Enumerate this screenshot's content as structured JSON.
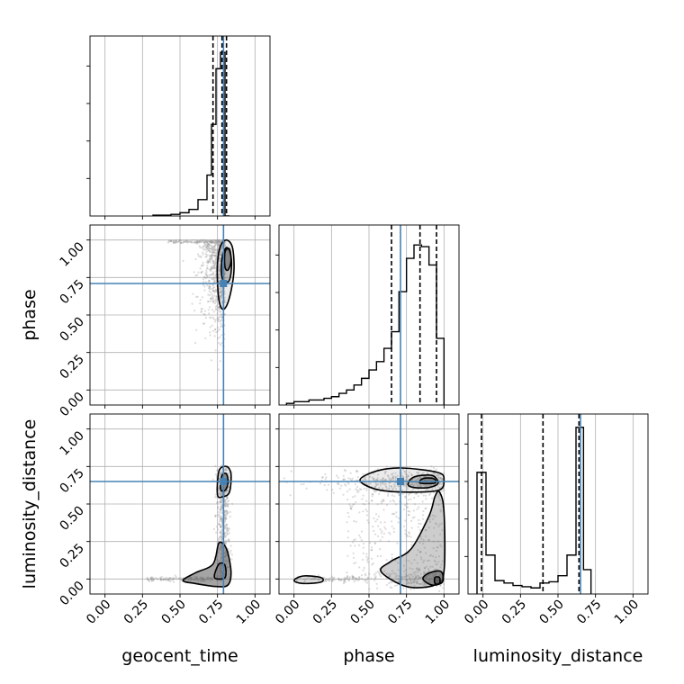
{
  "chart_data": {
    "type": "corner",
    "parameters": [
      "geocent_time",
      "phase",
      "luminosity_distance"
    ],
    "axis_range": [
      -0.1,
      1.1
    ],
    "tick_labels": [
      "0.00",
      "0.25",
      "0.50",
      "0.75",
      "1.00"
    ],
    "tick_values": [
      0.0,
      0.25,
      0.5,
      0.75,
      1.0
    ],
    "grid": true,
    "colors": {
      "truth": "#4682b4",
      "hist": "#000000",
      "points": "#9a9a9a",
      "contour_fill": "#5a5a5a"
    },
    "truths": {
      "geocent_time": 0.79,
      "phase": 0.71,
      "luminosity_distance": 0.65
    },
    "quantiles": {
      "geocent_time": [
        0.72,
        0.78,
        0.81
      ],
      "phase": [
        0.65,
        0.84,
        0.95
      ],
      "luminosity_distance": [
        -0.01,
        0.4,
        0.64
      ]
    },
    "histograms": {
      "geocent_time": {
        "bin_edges": [
          0.32,
          0.38,
          0.44,
          0.5,
          0.56,
          0.62,
          0.68,
          0.71,
          0.74,
          0.77,
          0.8,
          0.83
        ],
        "counts": [
          0.5,
          0.5,
          1,
          2,
          4,
          10,
          25,
          56,
          90,
          100,
          0
        ],
        "ymax": 110
      },
      "phase": {
        "bin_edges": [
          -0.05,
          0.0,
          0.05,
          0.1,
          0.15,
          0.2,
          0.25,
          0.3,
          0.35,
          0.4,
          0.45,
          0.5,
          0.55,
          0.6,
          0.65,
          0.7,
          0.75,
          0.8,
          0.85,
          0.9,
          0.95,
          1.0
        ],
        "counts": [
          1,
          2,
          2,
          3,
          3,
          4,
          5,
          7,
          9,
          12,
          16,
          21,
          26,
          34,
          44,
          68,
          88,
          96,
          95,
          84,
          40
        ],
        "ymax": 108
      },
      "luminosity_distance": {
        "bin_edges": [
          -0.04,
          0.02,
          0.08,
          0.14,
          0.2,
          0.26,
          0.32,
          0.38,
          0.44,
          0.5,
          0.56,
          0.62,
          0.67,
          0.72
        ],
        "counts": [
          100,
          32,
          11,
          9,
          7,
          6,
          5,
          9,
          10,
          15,
          32,
          137,
          20
        ],
        "ymax": 148
      }
    },
    "contours": {
      "phase_vs_geocent_time": [
        [
          [
            0.76,
            0.6
          ],
          [
            0.75,
            0.72
          ],
          [
            0.75,
            0.85
          ],
          [
            0.77,
            0.96
          ],
          [
            0.81,
            1.0
          ],
          [
            0.85,
            0.95
          ],
          [
            0.86,
            0.8
          ],
          [
            0.84,
            0.66
          ],
          [
            0.81,
            0.56
          ],
          [
            0.78,
            0.54
          ]
        ],
        [
          [
            0.78,
            0.75
          ],
          [
            0.78,
            0.88
          ],
          [
            0.81,
            0.95
          ],
          [
            0.84,
            0.89
          ],
          [
            0.84,
            0.78
          ],
          [
            0.82,
            0.72
          ]
        ],
        [
          [
            0.8,
            0.82
          ],
          [
            0.8,
            0.92
          ],
          [
            0.83,
            0.94
          ],
          [
            0.84,
            0.86
          ],
          [
            0.82,
            0.8
          ]
        ]
      ],
      "luminosity_distance_vs_geocent_time": [
        [
          [
            0.75,
            0.56
          ],
          [
            0.76,
            0.72
          ],
          [
            0.81,
            0.75
          ],
          [
            0.84,
            0.7
          ],
          [
            0.83,
            0.58
          ],
          [
            0.79,
            0.55
          ]
        ],
        [
          [
            0.77,
            0.6
          ],
          [
            0.78,
            0.69
          ],
          [
            0.81,
            0.7
          ],
          [
            0.82,
            0.64
          ],
          [
            0.8,
            0.59
          ]
        ],
        [
          [
            0.52,
            -0.01
          ],
          [
            0.6,
            0.04
          ],
          [
            0.72,
            0.1
          ],
          [
            0.76,
            0.24
          ],
          [
            0.81,
            0.2
          ],
          [
            0.84,
            0.05
          ],
          [
            0.82,
            -0.04
          ],
          [
            0.74,
            -0.05
          ],
          [
            0.6,
            -0.03
          ]
        ],
        [
          [
            0.73,
            0.01
          ],
          [
            0.76,
            0.1
          ],
          [
            0.8,
            0.09
          ],
          [
            0.8,
            0.01
          ]
        ]
      ],
      "luminosity_distance_vs_phase": [
        [
          [
            0.44,
            0.66
          ],
          [
            0.55,
            0.72
          ],
          [
            0.72,
            0.74
          ],
          [
            0.96,
            0.71
          ],
          [
            1.0,
            0.66
          ],
          [
            0.96,
            0.59
          ],
          [
            0.72,
            0.58
          ],
          [
            0.54,
            0.6
          ]
        ],
        [
          [
            0.76,
            0.63
          ],
          [
            0.8,
            0.68
          ],
          [
            0.92,
            0.69
          ],
          [
            0.96,
            0.64
          ],
          [
            0.9,
            0.61
          ],
          [
            0.8,
            0.61
          ]
        ],
        [
          [
            0.84,
            0.64
          ],
          [
            0.86,
            0.67
          ],
          [
            0.93,
            0.67
          ],
          [
            0.94,
            0.64
          ]
        ],
        [
          [
            0.58,
            0.05
          ],
          [
            0.65,
            0.12
          ],
          [
            0.78,
            0.2
          ],
          [
            0.9,
            0.42
          ],
          [
            0.94,
            0.55
          ],
          [
            0.97,
            0.58
          ],
          [
            1.0,
            0.45
          ],
          [
            1.0,
            0.05
          ],
          [
            0.94,
            -0.04
          ],
          [
            0.75,
            -0.05
          ]
        ],
        [
          [
            0.86,
            0.0
          ],
          [
            0.9,
            0.04
          ],
          [
            0.98,
            0.05
          ],
          [
            0.99,
            -0.02
          ],
          [
            0.92,
            -0.04
          ]
        ],
        [
          [
            0.94,
            -0.03
          ],
          [
            0.94,
            0.01
          ],
          [
            0.97,
            0.01
          ],
          [
            0.97,
            -0.03
          ]
        ],
        [
          [
            0.0,
            -0.01
          ],
          [
            0.06,
            0.02
          ],
          [
            0.18,
            0.01
          ],
          [
            0.18,
            -0.02
          ],
          [
            0.06,
            -0.03
          ]
        ]
      ]
    }
  }
}
